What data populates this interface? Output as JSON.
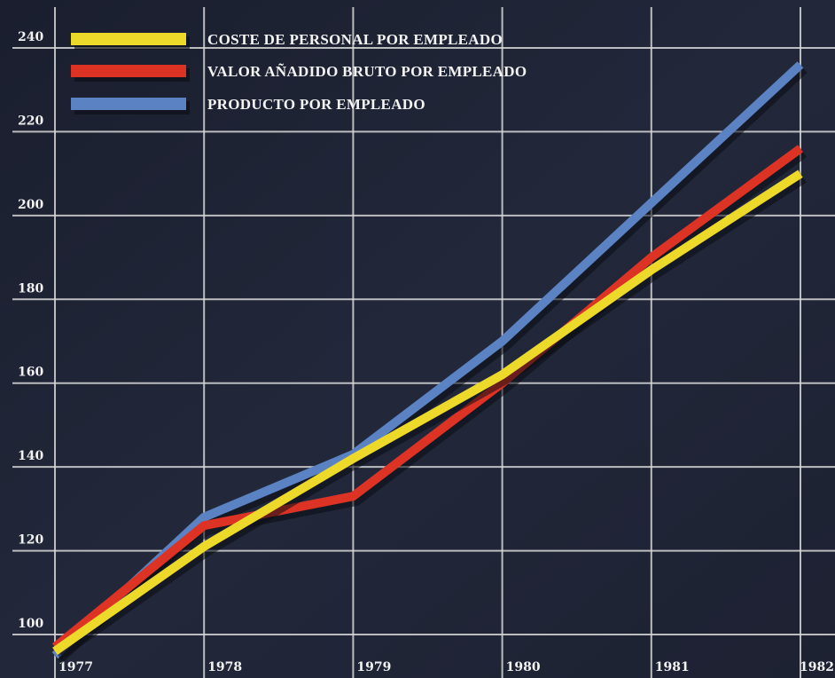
{
  "chart_data": {
    "type": "line",
    "title": "",
    "xlabel": "",
    "ylabel": "",
    "x": [
      "1977",
      "1978",
      "1979",
      "1980",
      "1981",
      "1982"
    ],
    "xlim": [
      1977,
      1982
    ],
    "ylim": [
      96,
      240
    ],
    "y_ticks": [
      100,
      120,
      140,
      160,
      180,
      200,
      220,
      240
    ],
    "grid": true,
    "legend_position": "top-left",
    "series": [
      {
        "name": "COSTE DE PERSONAL POR EMPLEADO",
        "color": "#ecd92a",
        "points": [
          [
            1977,
            96
          ],
          [
            1978,
            121
          ],
          [
            1979,
            142
          ],
          [
            1980,
            162
          ],
          [
            1981,
            187
          ],
          [
            1982,
            210
          ]
        ]
      },
      {
        "name": "VALOR AÑADIDO BRUTO POR EMPLEADO",
        "color": "#dd3325",
        "points": [
          [
            1977,
            97
          ],
          [
            1978,
            126
          ],
          [
            1979,
            133
          ],
          [
            1980,
            160
          ],
          [
            1981,
            190
          ],
          [
            1982,
            216
          ]
        ]
      },
      {
        "name": "PRODUCTO POR EMPLEADO",
        "color": "#5b82c3",
        "points": [
          [
            1977,
            95
          ],
          [
            1978,
            128
          ],
          [
            1979,
            143
          ],
          [
            1980,
            170
          ],
          [
            1981,
            203
          ],
          [
            1982,
            236
          ]
        ]
      }
    ]
  }
}
